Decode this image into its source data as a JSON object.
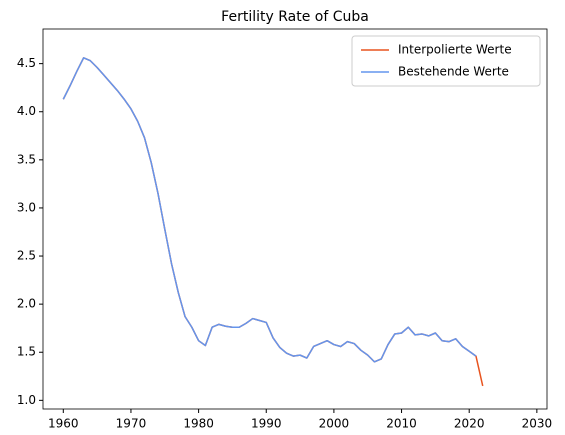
{
  "chart_data": {
    "type": "line",
    "title": "Fertility Rate of Cuba",
    "x": [
      1960,
      1961,
      1962,
      1963,
      1964,
      1965,
      1966,
      1967,
      1968,
      1969,
      1970,
      1971,
      1972,
      1973,
      1974,
      1975,
      1976,
      1977,
      1978,
      1979,
      1980,
      1981,
      1982,
      1983,
      1984,
      1985,
      1986,
      1987,
      1988,
      1989,
      1990,
      1991,
      1992,
      1993,
      1994,
      1995,
      1996,
      1997,
      1998,
      1999,
      2000,
      2001,
      2002,
      2003,
      2004,
      2005,
      2006,
      2007,
      2008,
      2009,
      2010,
      2011,
      2012,
      2013,
      2014,
      2015,
      2016,
      2017,
      2018,
      2019,
      2020,
      2021,
      2022
    ],
    "series": [
      {
        "name": "Interpolierte Werte",
        "color": "#e8541f",
        "values": [
          4.13,
          4.27,
          4.42,
          4.56,
          4.53,
          4.46,
          4.38,
          4.3,
          4.22,
          4.13,
          4.03,
          3.9,
          3.73,
          3.47,
          3.15,
          2.78,
          2.42,
          2.12,
          1.87,
          1.76,
          1.62,
          1.57,
          1.76,
          1.79,
          1.77,
          1.76,
          1.76,
          1.8,
          1.85,
          1.83,
          1.81,
          1.65,
          1.55,
          1.49,
          1.46,
          1.47,
          1.44,
          1.56,
          1.59,
          1.62,
          1.58,
          1.56,
          1.61,
          1.59,
          1.52,
          1.47,
          1.4,
          1.43,
          1.58,
          1.69,
          1.7,
          1.76,
          1.68,
          1.69,
          1.67,
          1.7,
          1.62,
          1.61,
          1.64,
          1.56,
          1.51,
          1.46,
          1.15
        ]
      },
      {
        "name": "Bestehende Werte",
        "color": "#6495ed",
        "values": [
          4.13,
          4.27,
          4.42,
          4.56,
          4.53,
          4.46,
          4.38,
          4.3,
          4.22,
          4.13,
          4.03,
          3.9,
          3.73,
          3.47,
          3.15,
          2.78,
          2.42,
          2.12,
          1.87,
          1.76,
          1.62,
          1.57,
          1.76,
          1.79,
          1.77,
          1.76,
          1.76,
          1.8,
          1.85,
          1.83,
          1.81,
          1.65,
          1.55,
          1.49,
          1.46,
          1.47,
          1.44,
          1.56,
          1.59,
          1.62,
          1.58,
          1.56,
          1.61,
          1.59,
          1.52,
          1.47,
          1.4,
          1.43,
          1.58,
          1.69,
          1.7,
          1.76,
          1.68,
          1.69,
          1.67,
          1.7,
          1.62,
          1.61,
          1.64,
          1.56,
          1.51,
          1.46,
          null
        ]
      }
    ],
    "xlim": [
      1957,
      2031.5
    ],
    "xticks": [
      1960,
      1970,
      1980,
      1990,
      2000,
      2010,
      2020,
      2030
    ],
    "ylim": [
      0.91,
      4.86
    ],
    "yticks": [
      {
        "value": 1,
        "label": "1.0"
      },
      1.5,
      {
        "value": 2,
        "label": "2.0"
      },
      2.5,
      {
        "value": 3,
        "label": "3.0"
      },
      3.5,
      {
        "value": 4,
        "label": "4.0"
      },
      4.5
    ],
    "legend": "upper right"
  }
}
